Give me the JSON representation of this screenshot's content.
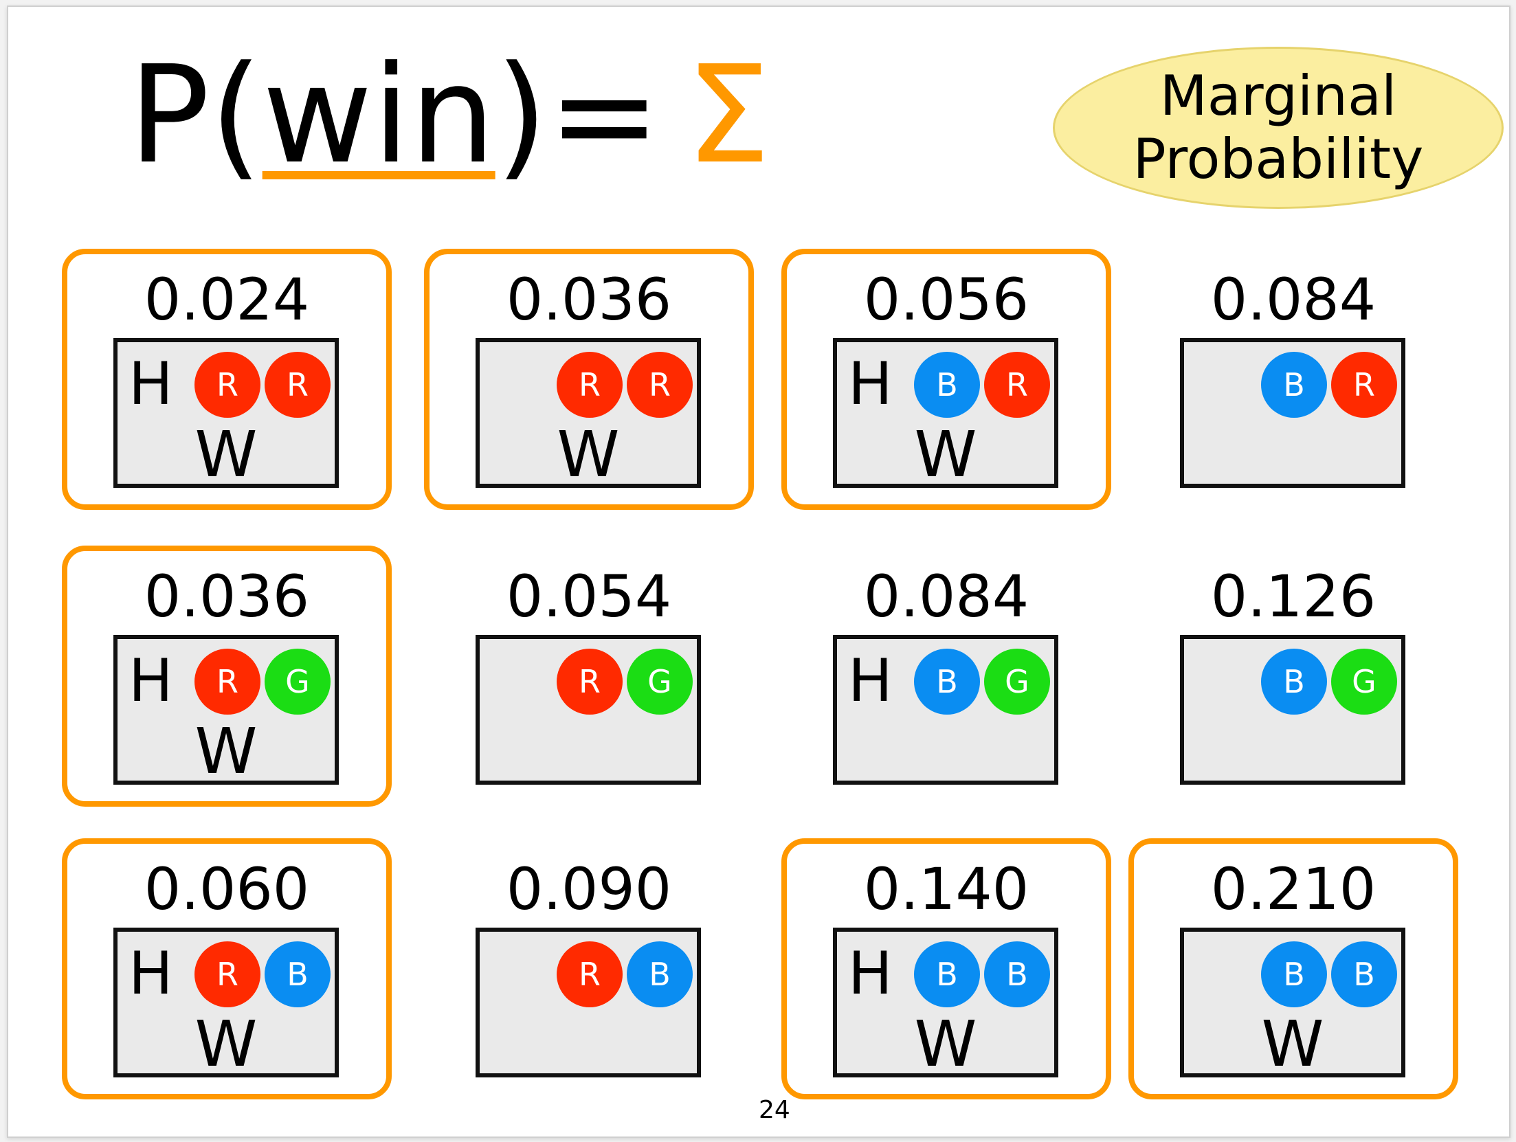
{
  "title": {
    "prefix": "P(",
    "variable": "win",
    "suffix": ")=",
    "sigma": "Σ"
  },
  "badge": {
    "line1": "Marginal",
    "line2": "Probability"
  },
  "page_number": "24",
  "colors": {
    "accent_orange": "#ff9800",
    "red_ball": "#ff2a00",
    "blue_ball": "#0a8df2",
    "green_ball": "#1bdd14",
    "badge_fill": "#fbeea0"
  },
  "cells": [
    {
      "prob": "0.024",
      "h": "H",
      "w": "W",
      "selected": true,
      "balls": [
        {
          "label": "R",
          "color": "red"
        },
        {
          "label": "R",
          "color": "red"
        }
      ]
    },
    {
      "prob": "0.036",
      "h": "",
      "w": "W",
      "selected": true,
      "balls": [
        {
          "label": "R",
          "color": "red"
        },
        {
          "label": "R",
          "color": "red"
        }
      ]
    },
    {
      "prob": "0.056",
      "h": "H",
      "w": "W",
      "selected": true,
      "balls": [
        {
          "label": "B",
          "color": "blue"
        },
        {
          "label": "R",
          "color": "red"
        }
      ]
    },
    {
      "prob": "0.084",
      "h": "",
      "w": "",
      "selected": false,
      "balls": [
        {
          "label": "B",
          "color": "blue"
        },
        {
          "label": "R",
          "color": "red"
        }
      ]
    },
    {
      "prob": "0.036",
      "h": "H",
      "w": "W",
      "selected": true,
      "balls": [
        {
          "label": "R",
          "color": "red"
        },
        {
          "label": "G",
          "color": "green"
        }
      ]
    },
    {
      "prob": "0.054",
      "h": "",
      "w": "",
      "selected": false,
      "balls": [
        {
          "label": "R",
          "color": "red"
        },
        {
          "label": "G",
          "color": "green"
        }
      ]
    },
    {
      "prob": "0.084",
      "h": "H",
      "w": "",
      "selected": false,
      "balls": [
        {
          "label": "B",
          "color": "blue"
        },
        {
          "label": "G",
          "color": "green"
        }
      ]
    },
    {
      "prob": "0.126",
      "h": "",
      "w": "",
      "selected": false,
      "balls": [
        {
          "label": "B",
          "color": "blue"
        },
        {
          "label": "G",
          "color": "green"
        }
      ]
    },
    {
      "prob": "0.060",
      "h": "H",
      "w": "W",
      "selected": true,
      "balls": [
        {
          "label": "R",
          "color": "red"
        },
        {
          "label": "B",
          "color": "blue"
        }
      ]
    },
    {
      "prob": "0.090",
      "h": "",
      "w": "",
      "selected": false,
      "balls": [
        {
          "label": "R",
          "color": "red"
        },
        {
          "label": "B",
          "color": "blue"
        }
      ]
    },
    {
      "prob": "0.140",
      "h": "H",
      "w": "W",
      "selected": true,
      "balls": [
        {
          "label": "B",
          "color": "blue"
        },
        {
          "label": "B",
          "color": "blue"
        }
      ]
    },
    {
      "prob": "0.210",
      "h": "",
      "w": "W",
      "selected": true,
      "balls": [
        {
          "label": "B",
          "color": "blue"
        },
        {
          "label": "B",
          "color": "blue"
        }
      ]
    }
  ]
}
